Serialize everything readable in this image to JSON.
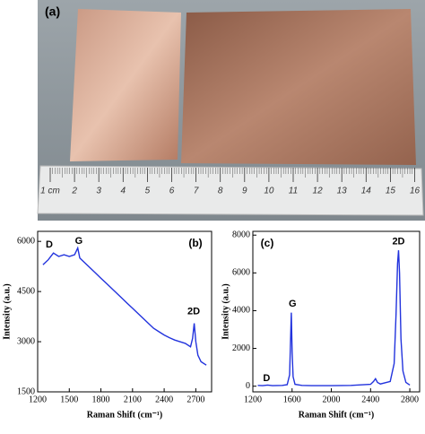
{
  "photo": {
    "label": "(a)",
    "ruler_labels": [
      "1 cm",
      "2",
      "3",
      "4",
      "5",
      "6",
      "7",
      "8",
      "9",
      "10",
      "11",
      "12",
      "13",
      "14",
      "15",
      "16"
    ]
  },
  "chart_data": [
    {
      "type": "line",
      "panel_label": "(b)",
      "xlabel": "Raman Shift (cm⁻¹)",
      "ylabel": "Intensity (a.u.)",
      "color": "#2233dd",
      "annotations": [
        "D",
        "G",
        "2D"
      ],
      "x": [
        1250,
        1300,
        1350,
        1400,
        1450,
        1500,
        1550,
        1580,
        1600,
        1650,
        1700,
        1750,
        1800,
        1850,
        1900,
        1950,
        2000,
        2050,
        2100,
        2150,
        2200,
        2250,
        2300,
        2350,
        2400,
        2450,
        2500,
        2550,
        2600,
        2650,
        2670,
        2685,
        2700,
        2720,
        2750,
        2800
      ],
      "values": [
        5300,
        5450,
        5650,
        5550,
        5600,
        5550,
        5600,
        5800,
        5500,
        5350,
        5200,
        5050,
        4900,
        4750,
        4600,
        4450,
        4300,
        4150,
        4000,
        3850,
        3700,
        3550,
        3400,
        3300,
        3200,
        3120,
        3050,
        3000,
        2950,
        2850,
        3100,
        3550,
        3000,
        2600,
        2400,
        2300
      ],
      "xlim": [
        1200,
        2850
      ],
      "ylim": [
        1500,
        6300
      ],
      "xticks": [
        1200,
        1500,
        1800,
        2100,
        2400,
        2700
      ],
      "yticks": [
        1500,
        3000,
        4500,
        6000
      ]
    },
    {
      "type": "line",
      "panel_label": "(c)",
      "xlabel": "Raman Shift (cm⁻¹)",
      "ylabel": "Intensity (a.u.)",
      "color": "#2233dd",
      "annotations": [
        "D",
        "G",
        "2D"
      ],
      "x": [
        1250,
        1300,
        1350,
        1400,
        1500,
        1550,
        1575,
        1585,
        1592,
        1600,
        1610,
        1630,
        1700,
        1800,
        2000,
        2200,
        2400,
        2430,
        2450,
        2470,
        2500,
        2600,
        2640,
        2660,
        2675,
        2685,
        2695,
        2710,
        2730,
        2760,
        2800
      ],
      "values": [
        40,
        30,
        60,
        30,
        40,
        80,
        600,
        2500,
        3900,
        1800,
        500,
        100,
        40,
        30,
        30,
        40,
        100,
        250,
        400,
        200,
        120,
        250,
        1200,
        3800,
        6500,
        7200,
        6000,
        2500,
        800,
        200,
        60
      ],
      "xlim": [
        1200,
        2900
      ],
      "ylim": [
        -300,
        8200
      ],
      "xticks": [
        1200,
        1600,
        2000,
        2400,
        2800
      ],
      "yticks": [
        0,
        2000,
        4000,
        6000,
        8000
      ]
    }
  ]
}
